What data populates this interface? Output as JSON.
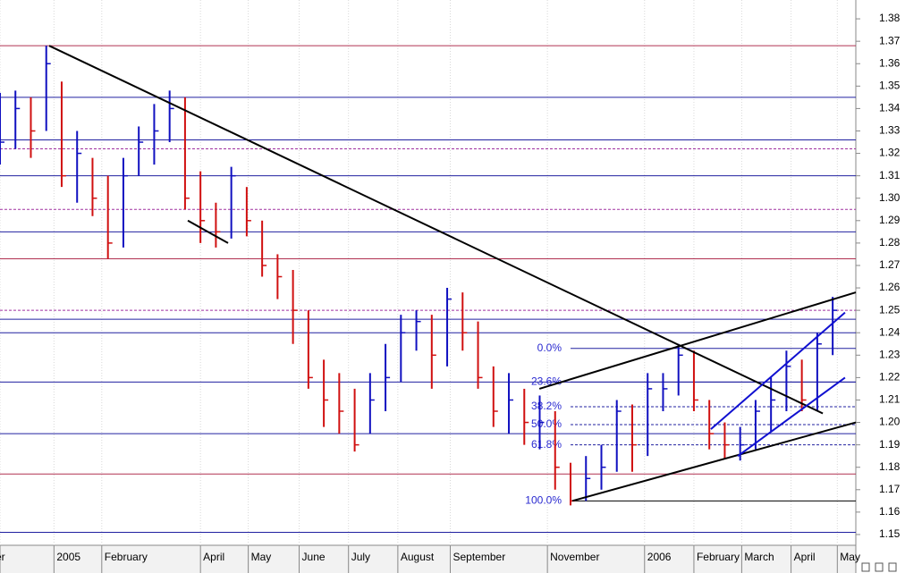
{
  "chart_data": {
    "type": "ohlc",
    "xlim": [
      0,
      55.5
    ],
    "ylim": [
      1.1452,
      1.3884
    ],
    "yticks": [
      1.15,
      1.16,
      1.17,
      1.18,
      1.19,
      {
        "value": 1.2,
        "label": "1.20"
      },
      1.21,
      1.22,
      1.23,
      1.24,
      1.25,
      1.26,
      1.27,
      1.28,
      1.29,
      {
        "value": 1.3,
        "label": "1.30"
      },
      1.31,
      1.32,
      1.33,
      1.34,
      1.35,
      1.36,
      1.37,
      1.38
    ],
    "xticks": [
      {
        "value": 0,
        "label": "er"
      },
      {
        "value": 3.5,
        "label": "2005"
      },
      {
        "value": 6.6,
        "label": "February"
      },
      {
        "value": 13.0,
        "label": "April"
      },
      {
        "value": 16.1,
        "label": "May"
      },
      {
        "value": 19.4,
        "label": "June"
      },
      {
        "value": 22.6,
        "label": "July"
      },
      {
        "value": 25.8,
        "label": "August"
      },
      {
        "value": 29.2,
        "label": "September"
      },
      {
        "value": 35.5,
        "label": "November"
      },
      {
        "value": 41.8,
        "label": "2006"
      },
      {
        "value": 45.0,
        "label": "February"
      },
      {
        "value": 48.1,
        "label": "March"
      },
      {
        "value": 51.3,
        "label": "April"
      },
      {
        "value": 54.3,
        "label": "May"
      }
    ],
    "grid": true,
    "up_color": "#1010c0",
    "down_color": "#d01010",
    "x": [
      0,
      1,
      2,
      3,
      4,
      5,
      6,
      7,
      8,
      9,
      10,
      11,
      12,
      13,
      14,
      15,
      16,
      17,
      18,
      19,
      20,
      21,
      22,
      23,
      24,
      25,
      26,
      27,
      28,
      29,
      30,
      31,
      32,
      33,
      34,
      35,
      36,
      37,
      38,
      39,
      40,
      41,
      42,
      43,
      44,
      45,
      46,
      47,
      48,
      49,
      50,
      51,
      52,
      53,
      54
    ],
    "close": [
      1.325,
      1.34,
      1.33,
      1.36,
      1.31,
      1.32,
      1.3,
      1.28,
      1.31,
      1.325,
      1.33,
      1.34,
      1.3,
      1.29,
      1.285,
      1.31,
      1.29,
      1.27,
      1.265,
      1.25,
      1.22,
      1.21,
      1.205,
      1.19,
      1.21,
      1.22,
      1.24,
      1.245,
      1.23,
      1.255,
      1.24,
      1.22,
      1.205,
      1.21,
      1.2,
      1.2,
      1.18,
      1.165,
      1.175,
      1.18,
      1.205,
      1.19,
      1.215,
      1.215,
      1.23,
      1.21,
      1.195,
      1.19,
      1.19,
      1.205,
      1.21,
      1.225,
      1.21,
      1.235,
      1.25
    ],
    "high": [
      1.347,
      1.348,
      1.345,
      1.368,
      1.352,
      1.33,
      1.318,
      1.31,
      1.318,
      1.332,
      1.342,
      1.348,
      1.345,
      1.312,
      1.298,
      1.314,
      1.305,
      1.29,
      1.275,
      1.268,
      1.25,
      1.228,
      1.222,
      1.215,
      1.222,
      1.235,
      1.248,
      1.25,
      1.248,
      1.26,
      1.258,
      1.245,
      1.225,
      1.222,
      1.215,
      1.212,
      1.205,
      1.182,
      1.185,
      1.19,
      1.21,
      1.208,
      1.222,
      1.222,
      1.235,
      1.232,
      1.21,
      1.2,
      1.198,
      1.21,
      1.22,
      1.232,
      1.228,
      1.24,
      1.256
    ],
    "low": [
      1.315,
      1.322,
      1.318,
      1.33,
      1.305,
      1.298,
      1.292,
      1.273,
      1.278,
      1.31,
      1.315,
      1.325,
      1.295,
      1.28,
      1.278,
      1.282,
      1.283,
      1.265,
      1.255,
      1.235,
      1.215,
      1.198,
      1.195,
      1.187,
      1.195,
      1.205,
      1.218,
      1.232,
      1.215,
      1.225,
      1.232,
      1.215,
      1.198,
      1.195,
      1.19,
      1.188,
      1.17,
      1.163,
      1.165,
      1.17,
      1.178,
      1.178,
      1.185,
      1.205,
      1.212,
      1.205,
      1.188,
      1.184,
      1.183,
      1.188,
      1.196,
      1.205,
      1.205,
      1.205,
      1.23
    ],
    "levels": [
      {
        "value": 1.368,
        "color": "#b03050",
        "dashed": false
      },
      {
        "value": 1.345,
        "color": "#2020a0",
        "dashed": false
      },
      {
        "value": 1.326,
        "color": "#2020a0",
        "dashed": false
      },
      {
        "value": 1.322,
        "color": "#a030a0",
        "dashed": true
      },
      {
        "value": 1.31,
        "color": "#2020a0",
        "dashed": false
      },
      {
        "value": 1.295,
        "color": "#a030a0",
        "dashed": true
      },
      {
        "value": 1.285,
        "color": "#2020a0",
        "dashed": false
      },
      {
        "value": 1.273,
        "color": "#b03050",
        "dashed": false
      },
      {
        "value": 1.25,
        "color": "#a030a0",
        "dashed": true
      },
      {
        "value": 1.246,
        "color": "#2020a0",
        "dashed": false
      },
      {
        "value": 1.24,
        "color": "#2020a0",
        "dashed": false
      },
      {
        "value": 1.218,
        "color": "#2020a0",
        "dashed": false
      },
      {
        "value": 1.195,
        "color": "#2020a0",
        "dashed": false
      },
      {
        "value": 1.177,
        "color": "#b03050",
        "dashed": false
      },
      {
        "value": 1.151,
        "color": "#2020a0",
        "dashed": false
      }
    ],
    "fib": {
      "x": [
        37.0,
        55.5
      ],
      "color": "#2020a0",
      "levels": [
        {
          "value": 1.233,
          "label": "0.0%"
        },
        {
          "value": 1.218,
          "label": "23.6%"
        },
        {
          "value": 1.207,
          "label": "38.2%"
        },
        {
          "value": 1.199,
          "label": "50.0%"
        },
        {
          "value": 1.19,
          "label": "61.8%"
        },
        {
          "value": 1.165,
          "label": "100.0%"
        }
      ]
    },
    "trendlines": [
      {
        "x": [
          3.19,
          53.36
        ],
        "y": [
          1.368,
          1.204
        ],
        "color": "#000000"
      },
      {
        "x": [
          37.12,
          55.5
        ],
        "y": [
          1.165,
          1.2
        ],
        "color": "#000000"
      },
      {
        "x": [
          34.98,
          55.5
        ],
        "y": [
          1.215,
          1.258
        ],
        "color": "#000000"
      },
      {
        "x": [
          46.1,
          54.8
        ],
        "y": [
          1.197,
          1.249
        ],
        "color": "#1010d0"
      },
      {
        "x": [
          47.85,
          54.8
        ],
        "y": [
          1.185,
          1.22
        ],
        "color": "#1010d0"
      },
      {
        "x": [
          12.18,
          14.79
        ],
        "y": [
          1.29,
          1.28
        ],
        "color": "#000000"
      }
    ]
  }
}
